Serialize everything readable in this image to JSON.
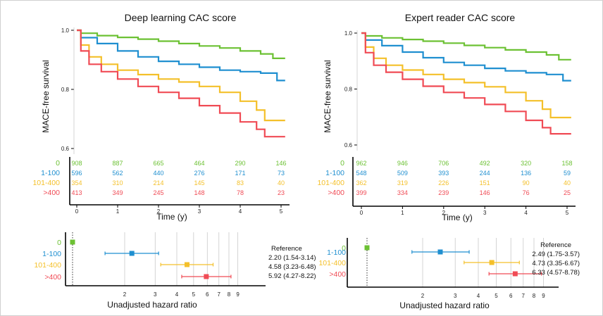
{
  "colors": {
    "0": "#6cc133",
    "1-100": "#1f8fd0",
    "101-400": "#f4c02a",
    ">400": "#f04b55",
    "axis": "#000000",
    "grid": "#c9c9c9"
  },
  "chart_data": [
    {
      "type": "line",
      "subtype": "kaplan-meier",
      "title": "Deep learning CAC score",
      "xlabel": "Time (y)",
      "ylabel": "MACE-free survival",
      "xlim": [
        0,
        5.1
      ],
      "ylim": [
        0.58,
        1.0
      ],
      "xticks": [
        "0",
        "1",
        "2",
        "3",
        "4",
        "5"
      ],
      "yticks": [
        "1.0",
        "0.8",
        "0.6"
      ],
      "series": [
        {
          "name": "0",
          "x": [
            0,
            0.1,
            0.5,
            1,
            1.5,
            2,
            2.5,
            3,
            3.5,
            4,
            4.5,
            4.8,
            5.1
          ],
          "y": [
            1.0,
            0.99,
            0.982,
            0.976,
            0.97,
            0.963,
            0.955,
            0.947,
            0.94,
            0.93,
            0.92,
            0.905,
            0.905
          ]
        },
        {
          "name": "1-100",
          "x": [
            0,
            0.1,
            0.5,
            1,
            1.5,
            2,
            2.5,
            3,
            3.5,
            4,
            4.5,
            4.9,
            5.1
          ],
          "y": [
            1.0,
            0.975,
            0.955,
            0.93,
            0.91,
            0.895,
            0.885,
            0.875,
            0.865,
            0.86,
            0.855,
            0.83,
            0.83
          ]
        },
        {
          "name": "101-400",
          "x": [
            0,
            0.1,
            0.3,
            0.6,
            1,
            1.5,
            2,
            2.5,
            3,
            3.5,
            4,
            4.4,
            4.6,
            5.1
          ],
          "y": [
            1.0,
            0.95,
            0.91,
            0.885,
            0.865,
            0.85,
            0.835,
            0.825,
            0.81,
            0.79,
            0.76,
            0.73,
            0.695,
            0.695
          ]
        },
        {
          "name": ">400",
          "x": [
            0,
            0.1,
            0.3,
            0.6,
            1,
            1.5,
            2,
            2.5,
            3,
            3.5,
            4,
            4.4,
            4.6,
            5.1
          ],
          "y": [
            1.0,
            0.93,
            0.885,
            0.86,
            0.835,
            0.81,
            0.79,
            0.77,
            0.745,
            0.72,
            0.69,
            0.665,
            0.64,
            0.64
          ]
        }
      ],
      "risk_table": {
        "times": [
          "0",
          "1",
          "2",
          "3",
          "4",
          "5"
        ],
        "rows": [
          {
            "label": "0",
            "counts": [
              "908",
              "887",
              "665",
              "464",
              "290",
              "146"
            ]
          },
          {
            "label": "1-100",
            "counts": [
              "596",
              "562",
              "440",
              "276",
              "171",
              "73"
            ]
          },
          {
            "label": "101-400",
            "counts": [
              "354",
              "310",
              "214",
              "145",
              "83",
              "40"
            ]
          },
          {
            "label": ">400",
            "counts": [
              "413",
              "349",
              "245",
              "148",
              "78",
              "23"
            ]
          }
        ]
      }
    },
    {
      "type": "line",
      "subtype": "kaplan-meier",
      "title": "Expert reader CAC score",
      "xlabel": "Time (y)",
      "ylabel": "MACE-free survival",
      "xlim": [
        0,
        5.1
      ],
      "ylim": [
        0.58,
        1.0
      ],
      "xticks": [
        "0",
        "1",
        "2",
        "3",
        "4",
        "5"
      ],
      "yticks": [
        "1.0",
        "0.8",
        "0.6"
      ],
      "series": [
        {
          "name": "0",
          "x": [
            0,
            0.1,
            0.5,
            1,
            1.5,
            2,
            2.5,
            3,
            3.5,
            4,
            4.5,
            4.8,
            5.1
          ],
          "y": [
            1.0,
            0.99,
            0.983,
            0.977,
            0.971,
            0.964,
            0.956,
            0.948,
            0.94,
            0.932,
            0.922,
            0.905,
            0.905
          ]
        },
        {
          "name": "1-100",
          "x": [
            0,
            0.1,
            0.5,
            1,
            1.5,
            2,
            2.5,
            3,
            3.5,
            4,
            4.5,
            4.9,
            5.1
          ],
          "y": [
            1.0,
            0.975,
            0.955,
            0.932,
            0.912,
            0.895,
            0.885,
            0.874,
            0.865,
            0.858,
            0.852,
            0.83,
            0.83
          ]
        },
        {
          "name": "101-400",
          "x": [
            0,
            0.1,
            0.3,
            0.6,
            1,
            1.5,
            2,
            2.5,
            3,
            3.5,
            4,
            4.4,
            4.6,
            5.1
          ],
          "y": [
            1.0,
            0.95,
            0.91,
            0.885,
            0.868,
            0.852,
            0.835,
            0.823,
            0.808,
            0.788,
            0.758,
            0.728,
            0.698,
            0.698
          ]
        },
        {
          "name": ">400",
          "x": [
            0,
            0.1,
            0.3,
            0.6,
            1,
            1.5,
            2,
            2.5,
            3,
            3.5,
            4,
            4.4,
            4.6,
            5.1
          ],
          "y": [
            1.0,
            0.93,
            0.885,
            0.86,
            0.835,
            0.81,
            0.788,
            0.768,
            0.745,
            0.72,
            0.688,
            0.662,
            0.64,
            0.64
          ]
        }
      ],
      "risk_table": {
        "times": [
          "0",
          "1",
          "2",
          "3",
          "4",
          "5"
        ],
        "rows": [
          {
            "label": "0",
            "counts": [
              "962",
              "946",
              "706",
              "492",
              "320",
              "158"
            ]
          },
          {
            "label": "1-100",
            "counts": [
              "548",
              "509",
              "393",
              "244",
              "136",
              "59"
            ]
          },
          {
            "label": "101-400",
            "counts": [
              "362",
              "319",
              "226",
              "151",
              "90",
              "40"
            ]
          },
          {
            "label": ">400",
            "counts": [
              "399",
              "334",
              "239",
              "146",
              "76",
              "25"
            ]
          }
        ]
      }
    },
    {
      "type": "scatter",
      "subtype": "forest",
      "xlabel": "Unadjusted hazard ratio",
      "xscale": "log",
      "xlim": [
        1,
        9.5
      ],
      "xticks": [
        "2",
        "3",
        "4",
        "5",
        "6",
        "7",
        "8",
        "9"
      ],
      "categories": [
        "0",
        "1-100",
        "101-400",
        ">400"
      ],
      "estimates": [
        1.0,
        2.2,
        4.58,
        5.92
      ],
      "ci_low": [
        1.0,
        1.54,
        3.23,
        4.27
      ],
      "ci_high": [
        1.0,
        3.14,
        6.48,
        8.22
      ],
      "labels": [
        "Reference",
        "2.20 (1.54-3.14)",
        "4.58 (3.23-6.48)",
        "5.92 (4.27-8.22)"
      ]
    },
    {
      "type": "scatter",
      "subtype": "forest",
      "xlabel": "Unadjusted hazard ratio",
      "xscale": "log",
      "xlim": [
        1,
        9.5
      ],
      "xticks": [
        "2",
        "3",
        "4",
        "5",
        "6",
        "7",
        "8",
        "9"
      ],
      "categories": [
        "0",
        "1-100",
        "101-400",
        ">400"
      ],
      "estimates": [
        1.0,
        2.49,
        4.73,
        6.33
      ],
      "ci_low": [
        1.0,
        1.75,
        3.35,
        4.57
      ],
      "ci_high": [
        1.0,
        3.57,
        6.67,
        8.78
      ],
      "labels": [
        "Reference",
        "2.49 (1.75-3.57)",
        "4.73 (3.35-6.67)",
        "6.33 (4.57-8.78)"
      ]
    }
  ]
}
